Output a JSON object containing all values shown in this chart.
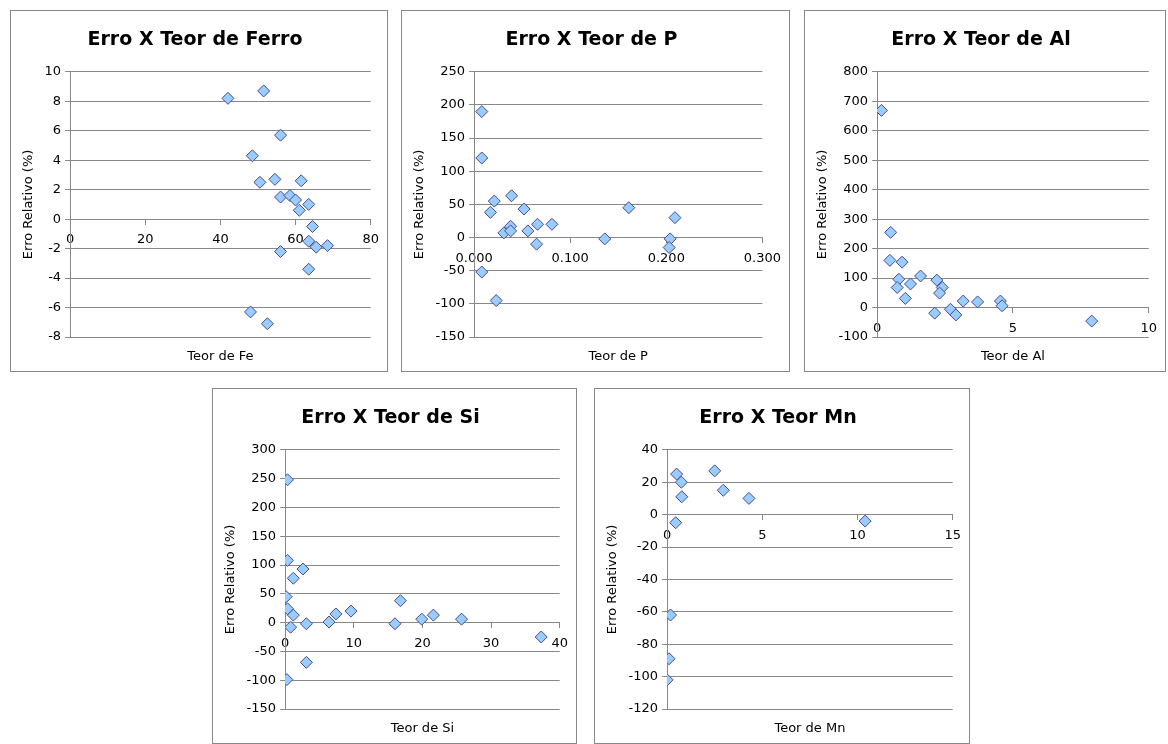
{
  "chart_data": [
    {
      "type": "scatter",
      "title": "Erro X Teor de Ferro",
      "xlabel": "Teor de Fe",
      "ylabel": "Erro Relativo (%)",
      "color": "#99ccff",
      "marker": "diamond",
      "grid": "y",
      "xlim": [
        0,
        80
      ],
      "ylim": [
        -8,
        10
      ],
      "xticks": [
        0,
        20,
        40,
        60,
        80
      ],
      "yticks": [
        -8,
        -6,
        -4,
        -2,
        0,
        2,
        4,
        6,
        8,
        10
      ],
      "x": [
        42,
        51.5,
        56,
        48.5,
        50.5,
        54.5,
        56,
        58.5,
        60,
        61.5,
        63.5,
        61,
        64.5,
        63.5,
        65.5,
        68.5,
        56,
        63.5,
        48,
        52.5
      ],
      "values": [
        8.2,
        8.7,
        5.7,
        4.3,
        2.5,
        2.7,
        1.5,
        1.6,
        1.3,
        2.6,
        1.0,
        0.6,
        -0.5,
        -1.5,
        -1.9,
        -1.8,
        -2.2,
        -3.4,
        -6.3,
        -7.1
      ]
    },
    {
      "type": "scatter",
      "title": "Erro X Teor de P",
      "xlabel": "Teor de P",
      "ylabel": "Erro Relativo (%)",
      "color": "#99ccff",
      "marker": "diamond",
      "grid": "y",
      "xlim": [
        0,
        0.3
      ],
      "ylim": [
        -150,
        250
      ],
      "xticks": [
        {
          "value": 0,
          "label": "0.000"
        },
        {
          "value": 0.1,
          "label": "0.100"
        },
        {
          "value": 0.2,
          "label": "0.200"
        },
        {
          "value": 0.3,
          "label": "0.300"
        }
      ],
      "yticks": [
        -150,
        -100,
        -50,
        0,
        50,
        100,
        150,
        200,
        250
      ],
      "x": [
        0.008,
        0.008,
        0.021,
        0.017,
        0.039,
        0.031,
        0.038,
        0.038,
        0.052,
        0.056,
        0.066,
        0.065,
        0.081,
        0.136,
        0.161,
        0.204,
        0.203,
        0.209,
        0.008,
        0.023
      ],
      "values": [
        190,
        120,
        55,
        38,
        63,
        7,
        17,
        10,
        43,
        10,
        20,
        -10,
        20,
        -2,
        45,
        -2,
        -15,
        30,
        -52,
        -95
      ]
    },
    {
      "type": "scatter",
      "title": "Erro X Teor de Al",
      "xlabel": "Teor de Al",
      "ylabel": "Erro Relativo (%)",
      "color": "#99ccff",
      "marker": "diamond",
      "grid": "y",
      "xlim": [
        0,
        10
      ],
      "ylim": [
        -100,
        800
      ],
      "xticks": [
        0,
        5,
        10
      ],
      "yticks": [
        -100,
        0,
        100,
        200,
        300,
        400,
        500,
        600,
        700,
        800
      ],
      "x": [
        0.16,
        0.5,
        0.47,
        0.92,
        0.8,
        0.74,
        1.23,
        1.04,
        1.6,
        2.2,
        2.4,
        2.3,
        2.12,
        2.7,
        2.9,
        3.17,
        3.7,
        4.54,
        4.6,
        7.9
      ],
      "values": [
        669,
        255,
        160,
        154,
        96,
        68,
        80,
        31,
        107,
        93,
        68,
        49,
        -19,
        -6,
        -25,
        22,
        19,
        22,
        6,
        -46
      ]
    },
    {
      "type": "scatter",
      "title": "Erro X Teor de Si",
      "xlabel": "Teor de Si",
      "ylabel": "Erro Relativo (%)",
      "color": "#99ccff",
      "marker": "diamond",
      "grid": "y",
      "xlim": [
        0,
        40
      ],
      "ylim": [
        -150,
        300
      ],
      "xticks": [
        0,
        10,
        20,
        30,
        40
      ],
      "yticks": [
        -150,
        -100,
        -50,
        0,
        50,
        100,
        150,
        200,
        250,
        300
      ],
      "x": [
        0.35,
        0.35,
        1.2,
        2.6,
        0.15,
        0.35,
        1.2,
        0.8,
        3.1,
        6.4,
        7.4,
        9.6,
        16,
        16.8,
        19.9,
        21.6,
        25.7,
        37.3,
        3.1,
        0.25
      ],
      "values": [
        248,
        108,
        77,
        93,
        45,
        24,
        13,
        -8,
        -2,
        1,
        15,
        20,
        -2,
        38,
        6,
        13,
        6,
        -25,
        -69,
        -99
      ]
    },
    {
      "type": "scatter",
      "title": "Erro X Teor Mn",
      "xlabel": "Teor de Mn",
      "ylabel": "Erro Relativo (%)",
      "color": "#99ccff",
      "marker": "diamond",
      "grid": "y",
      "xlim": [
        0,
        15
      ],
      "ylim": [
        -120,
        40
      ],
      "xticks": [
        0,
        5,
        10,
        15
      ],
      "yticks": [
        -120,
        -100,
        -80,
        -60,
        -40,
        -20,
        0,
        20,
        40
      ],
      "x": [
        0.5,
        0.75,
        0.77,
        0.45,
        2.5,
        2.95,
        4.3,
        10.4,
        0.18,
        0.1,
        0
      ],
      "values": [
        25,
        20,
        11,
        -5,
        27,
        15,
        10,
        -4,
        -62,
        -89,
        -102
      ]
    }
  ]
}
